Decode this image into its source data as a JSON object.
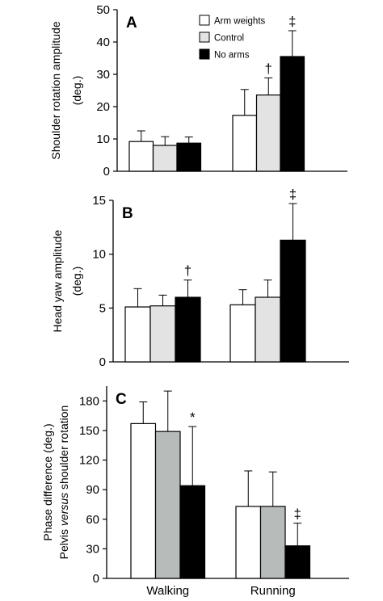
{
  "chart_data": [
    {
      "type": "bar",
      "panel": "A",
      "ylabel": [
        "Shoulder rotation amplitude",
        "(deg.)"
      ],
      "ylim": [
        0,
        50
      ],
      "yticks": [
        0,
        10,
        20,
        30,
        40,
        50
      ],
      "categories": [
        "Walking",
        "Running"
      ],
      "series": [
        {
          "name": "Arm weights",
          "color": "#ffffff",
          "values": [
            9.2,
            17.3
          ],
          "errors": [
            3.3,
            8.0
          ]
        },
        {
          "name": "Control",
          "color": "#e3e3e3",
          "values": [
            8.0,
            23.6
          ],
          "errors": [
            2.7,
            5.3
          ]
        },
        {
          "name": "No arms",
          "color": "#000000",
          "values": [
            8.7,
            35.5
          ],
          "errors": [
            1.9,
            8.0
          ]
        }
      ],
      "annotations": [
        {
          "text": "†",
          "category": 1,
          "series": 1
        },
        {
          "text": "‡",
          "category": 1,
          "series": 2
        }
      ],
      "legend": "top-center"
    },
    {
      "type": "bar",
      "panel": "B",
      "ylabel": [
        "Head yaw amplitude",
        "(deg.)"
      ],
      "ylim": [
        0,
        15
      ],
      "yticks": [
        0,
        5,
        10,
        15
      ],
      "categories": [
        "Walking",
        "Running"
      ],
      "series": [
        {
          "name": "Arm weights",
          "color": "#ffffff",
          "values": [
            5.1,
            5.3
          ],
          "errors": [
            1.7,
            1.4
          ]
        },
        {
          "name": "Control",
          "color": "#e3e3e3",
          "values": [
            5.2,
            6.0
          ],
          "errors": [
            1.0,
            1.6
          ]
        },
        {
          "name": "No arms",
          "color": "#000000",
          "values": [
            6.0,
            11.3
          ],
          "errors": [
            1.6,
            3.4
          ]
        }
      ],
      "annotations": [
        {
          "text": "†",
          "category": 0,
          "series": 2
        },
        {
          "text": "‡",
          "category": 1,
          "series": 2
        }
      ]
    },
    {
      "type": "bar",
      "panel": "C",
      "ylabel": [
        "Phase difference (deg.)",
        "Pelvis versus shoulder rotation"
      ],
      "ylim": [
        0,
        195
      ],
      "yticks": [
        0,
        30,
        60,
        90,
        120,
        150,
        180
      ],
      "categories": [
        "Walking",
        "Running"
      ],
      "series": [
        {
          "name": "Arm weights",
          "color": "#ffffff",
          "values": [
            157,
            73
          ],
          "errors": [
            22,
            36
          ]
        },
        {
          "name": "Control",
          "color": "#b7bcbb",
          "values": [
            149,
            73
          ],
          "errors": [
            41,
            35
          ]
        },
        {
          "name": "No arms",
          "color": "#000000",
          "values": [
            94,
            33
          ],
          "errors": [
            60,
            23
          ]
        }
      ],
      "annotations": [
        {
          "text": "*",
          "category": 0,
          "series": 2
        },
        {
          "text": "‡",
          "category": 1,
          "series": 2
        }
      ]
    }
  ]
}
